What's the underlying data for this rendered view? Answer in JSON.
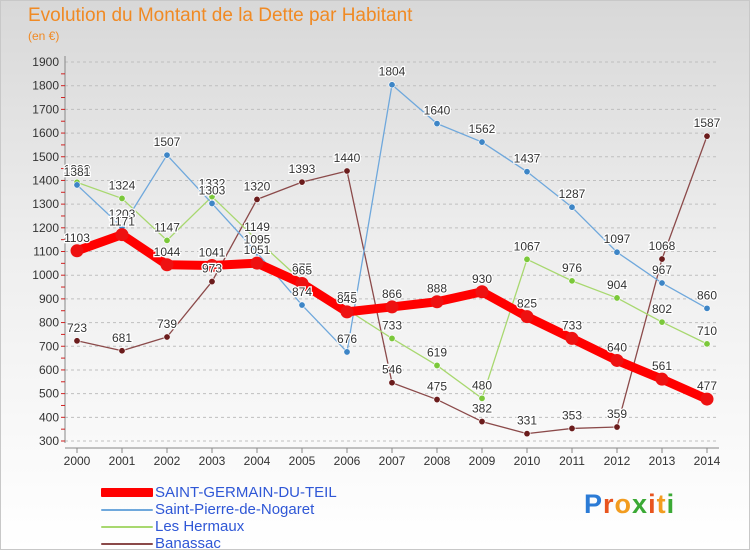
{
  "title": "Evolution du Montant de la Dette par Habitant",
  "subtitle": "(en €)",
  "logo": {
    "letters": [
      "P",
      "r",
      "o",
      "x",
      "i",
      "t",
      "i"
    ],
    "colors": [
      "#2b7bd6",
      "#e8541e",
      "#f29c1f",
      "#3ba935",
      "#e8541e",
      "#f29c1f",
      "#3ba935"
    ]
  },
  "chart_data": {
    "type": "line",
    "title": "Evolution du Montant de la Dette par Habitant",
    "xlabel": "",
    "ylabel": "(en €)",
    "ylim": [
      300,
      1900
    ],
    "yticks": [
      300,
      400,
      500,
      600,
      700,
      800,
      900,
      1000,
      1100,
      1200,
      1300,
      1400,
      1500,
      1600,
      1700,
      1800,
      1900
    ],
    "grid": "horizontal dashed",
    "legend_position": "bottom-left",
    "x": [
      "2000",
      "2001",
      "2002",
      "2003",
      "2004",
      "2005",
      "2006",
      "2007",
      "2008",
      "2009",
      "2010",
      "2011",
      "2012",
      "2013",
      "2014"
    ],
    "series": [
      {
        "name": "SAINT-GERMAIN-DU-TEIL",
        "color": "#ff0000",
        "marker": "#ee1111",
        "values": [
          1103,
          1171,
          1044,
          1041,
          1051,
          965,
          845,
          866,
          888,
          930,
          825,
          733,
          640,
          561,
          477
        ]
      },
      {
        "name": "Saint-Pierre-de-Nogaret",
        "color": "#6fa8dc",
        "marker": "#3d85c6",
        "values": [
          1381,
          1203,
          1507,
          1303,
          1095,
          874,
          676,
          1804,
          1640,
          1562,
          1437,
          1287,
          1097,
          967,
          860
        ]
      },
      {
        "name": "Les Hermaux",
        "color": "#a8d86f",
        "marker": "#7bc83a",
        "values": [
          1392,
          1324,
          1147,
          1332,
          1149,
          975,
          855,
          733,
          619,
          480,
          1067,
          976,
          904,
          802,
          710
        ]
      },
      {
        "name": "Banassac",
        "color": "#8b4a4a",
        "marker": "#6b1c1c",
        "values": [
          723,
          681,
          739,
          973,
          1320,
          1393,
          1440,
          546,
          475,
          382,
          331,
          353,
          359,
          1068,
          1587
        ]
      }
    ]
  }
}
